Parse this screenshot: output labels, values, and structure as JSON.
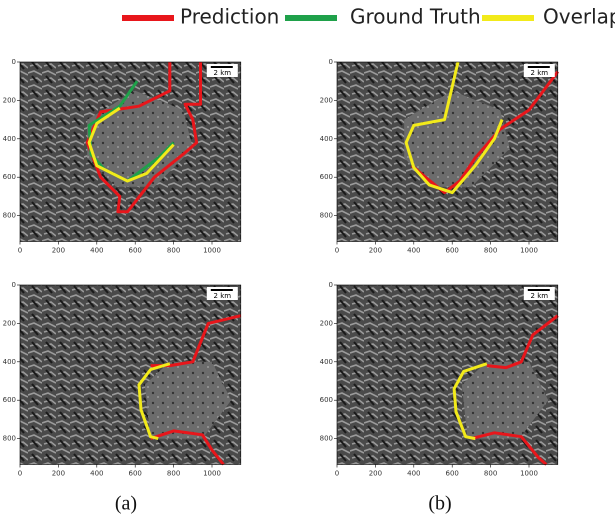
{
  "legend": [
    {
      "label": "Prediction",
      "color": "#e8161b"
    },
    {
      "label": "Ground Truth",
      "color": "#1fa14a"
    },
    {
      "label": "Overlap",
      "color": "#f2ea1a"
    }
  ],
  "axes": {
    "xticks": [
      0,
      200,
      400,
      600,
      800,
      1000
    ],
    "yticks": [
      0,
      200,
      400,
      600,
      800
    ]
  },
  "scale_bar": "2 km",
  "captions": [
    "(a)",
    "(b)"
  ]
}
